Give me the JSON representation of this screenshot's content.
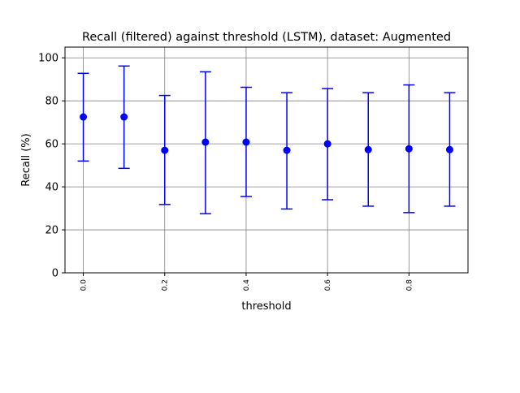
{
  "chart_data": {
    "type": "scatter",
    "title": "Recall (filtered) against threshold (LSTM), dataset: Augmented",
    "xlabel": "threshold",
    "ylabel": "Recall (%)",
    "xlim": [
      -0.045,
      0.945
    ],
    "ylim": [
      0,
      105
    ],
    "grid": true,
    "series_color": "#0000ff",
    "x_ticks": [
      {
        "value": 0.0,
        "label": "0.0"
      },
      {
        "value": 0.2,
        "label": "0.2"
      },
      {
        "value": 0.4,
        "label": "0.4"
      },
      {
        "value": 0.6,
        "label": "0.6"
      },
      {
        "value": 0.8,
        "label": "0.8"
      }
    ],
    "x_grid_values": [
      0.0,
      0.2,
      0.4,
      0.6,
      0.8
    ],
    "y_ticks": [
      {
        "value": 0,
        "label": "0"
      },
      {
        "value": 20,
        "label": "20"
      },
      {
        "value": 40,
        "label": "40"
      },
      {
        "value": 60,
        "label": "60"
      },
      {
        "value": 80,
        "label": "80"
      },
      {
        "value": 100,
        "label": "100"
      }
    ],
    "points": [
      {
        "x": 0.0,
        "y": 72.5,
        "lower": 52.0,
        "upper": 92.8
      },
      {
        "x": 0.1,
        "y": 72.5,
        "lower": 48.6,
        "upper": 96.2
      },
      {
        "x": 0.2,
        "y": 57.0,
        "lower": 31.8,
        "upper": 82.5
      },
      {
        "x": 0.3,
        "y": 60.8,
        "lower": 27.5,
        "upper": 93.5
      },
      {
        "x": 0.4,
        "y": 60.8,
        "lower": 35.5,
        "upper": 86.3
      },
      {
        "x": 0.5,
        "y": 57.0,
        "lower": 29.7,
        "upper": 83.8
      },
      {
        "x": 0.6,
        "y": 60.0,
        "lower": 34.0,
        "upper": 85.7
      },
      {
        "x": 0.7,
        "y": 57.3,
        "lower": 31.0,
        "upper": 83.8
      },
      {
        "x": 0.8,
        "y": 57.7,
        "lower": 28.0,
        "upper": 87.4
      },
      {
        "x": 0.9,
        "y": 57.3,
        "lower": 31.0,
        "upper": 83.8
      }
    ]
  }
}
